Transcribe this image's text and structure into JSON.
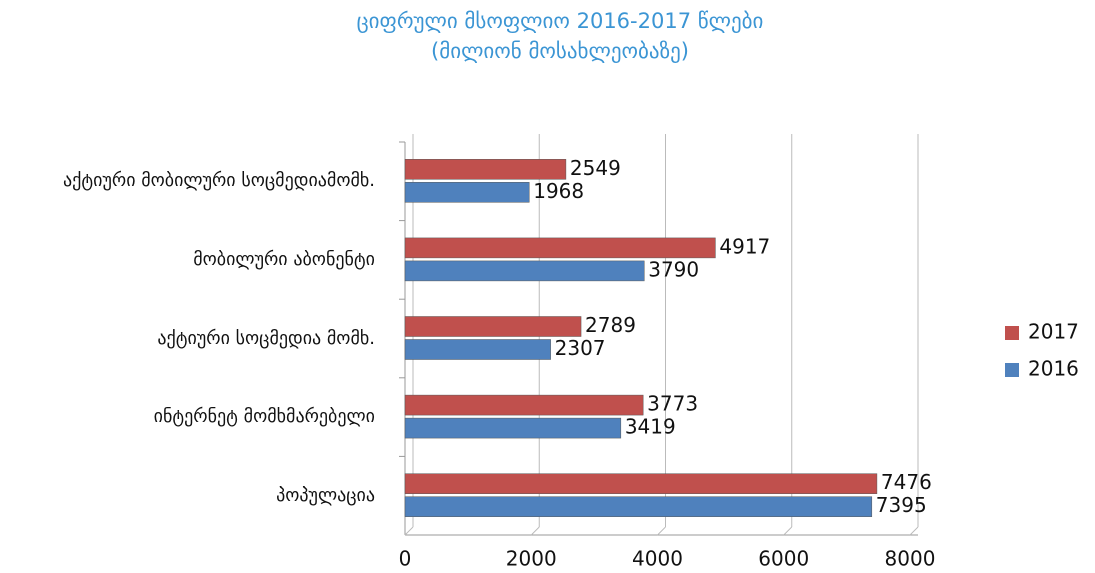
{
  "chart_data": {
    "type": "bar",
    "orientation": "horizontal",
    "title": "ციფრული  მსოფლიო 2016-2017 წლები",
    "subtitle": "(მილიონ მოსახლეობაზე)",
    "categories": [
      "აქტიური მობილური სოცმედიამომხ.",
      "მობილური აბონენტი",
      "აქტიური სოცმედია მომხ.",
      "ინტერნეტ მომხმარებელი",
      "პოპულაცია"
    ],
    "series": [
      {
        "name": "2017",
        "color": "#c0504d",
        "values": [
          2549,
          4917,
          2789,
          3773,
          7476
        ]
      },
      {
        "name": "2016",
        "color": "#4f81bd",
        "values": [
          1968,
          3790,
          2307,
          3419,
          7395
        ]
      }
    ],
    "xlim": [
      0,
      8000
    ],
    "xticks": [
      0,
      2000,
      4000,
      6000,
      8000
    ],
    "grid": true,
    "legend": "right"
  }
}
